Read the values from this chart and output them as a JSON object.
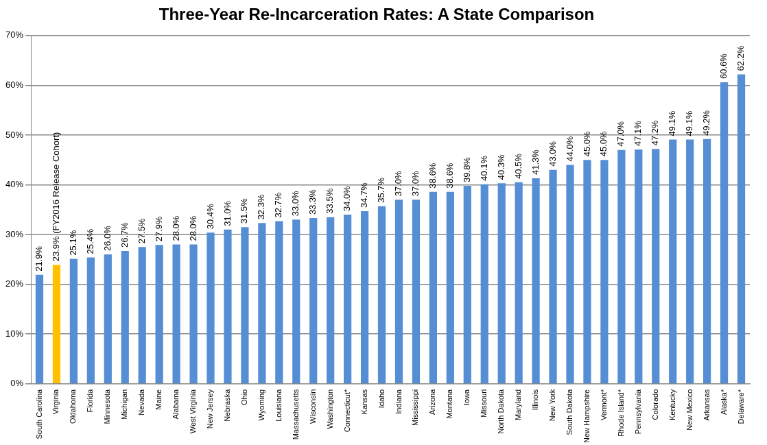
{
  "chart_data": {
    "type": "bar",
    "title": "Three-Year Re-Incarceration Rates: A State Comparison",
    "categories": [
      "South Carolina",
      "Virginia",
      "Oklahoma",
      "Florida",
      "Minnesota",
      "Michigan",
      "Nevada",
      "Maine",
      "Alabama",
      "West Virginia",
      "New Jersey",
      "Nebraska",
      "Ohio",
      "Wyoming",
      "Louisiana",
      "Massachusetts",
      "Wisconsin",
      "Washington",
      "Connecticut*",
      "Kansas",
      "Idaho",
      "Indiana",
      "Mississippi",
      "Arizona",
      "Montana",
      "Iowa",
      "Missouri",
      "North Dakota",
      "Maryland",
      "Illinois",
      "New York",
      "South Dakota",
      "New Hampshire",
      "Vermont*",
      "Rhode Island*",
      "Pennsylvania",
      "Colorado",
      "Kentucky",
      "New Mexico",
      "Arkansas",
      "Alaska*",
      "Delaware*"
    ],
    "values": [
      21.9,
      23.9,
      25.1,
      25.4,
      26.0,
      26.7,
      27.5,
      27.9,
      28.0,
      28.0,
      30.4,
      31.0,
      31.5,
      32.3,
      32.7,
      33.0,
      33.3,
      33.5,
      34.0,
      34.7,
      35.7,
      37.0,
      37.0,
      38.6,
      38.6,
      39.8,
      40.1,
      40.3,
      40.5,
      41.3,
      43.0,
      44.0,
      45.0,
      45.0,
      47.0,
      47.1,
      47.2,
      49.1,
      49.1,
      49.2,
      60.6,
      62.2
    ],
    "value_labels": [
      "21.9%",
      "23.9% (FY2016 Release Cohort)",
      "25.1%",
      "25.4%",
      "26.0%",
      "26.7%",
      "27.5%",
      "27.9%",
      "28.0%",
      "28.0%",
      "30.4%",
      "31.0%",
      "31.5%",
      "32.3%",
      "32.7%",
      "33.0%",
      "33.3%",
      "33.5%",
      "34.0%",
      "34.7%",
      "35.7%",
      "37.0%",
      "37.0%",
      "38.6%",
      "38.6%",
      "39.8%",
      "40.1%",
      "40.3%",
      "40.5%",
      "41.3%",
      "43.0%",
      "44.0%",
      "45.0%",
      "45.0%",
      "47.0%",
      "47.1%",
      "47.2%",
      "49.1%",
      "49.1%",
      "49.2%",
      "60.6%",
      "62.2%"
    ],
    "colors": [
      "#558ed5",
      "#ffc000",
      "#558ed5",
      "#558ed5",
      "#558ed5",
      "#558ed5",
      "#558ed5",
      "#558ed5",
      "#558ed5",
      "#558ed5",
      "#558ed5",
      "#558ed5",
      "#558ed5",
      "#558ed5",
      "#558ed5",
      "#558ed5",
      "#558ed5",
      "#558ed5",
      "#558ed5",
      "#558ed5",
      "#558ed5",
      "#558ed5",
      "#558ed5",
      "#558ed5",
      "#558ed5",
      "#558ed5",
      "#558ed5",
      "#558ed5",
      "#558ed5",
      "#558ed5",
      "#558ed5",
      "#558ed5",
      "#558ed5",
      "#558ed5",
      "#558ed5",
      "#558ed5",
      "#558ed5",
      "#558ed5",
      "#558ed5",
      "#558ed5",
      "#558ed5",
      "#558ed5"
    ],
    "ylim": [
      0,
      70
    ],
    "yticks": [
      {
        "value": 0,
        "label": "0%"
      },
      {
        "value": 10,
        "label": "10%"
      },
      {
        "value": 20,
        "label": "20%"
      },
      {
        "value": 30,
        "label": "30%"
      },
      {
        "value": 40,
        "label": "40%"
      },
      {
        "value": 50,
        "label": "50%"
      },
      {
        "value": 60,
        "label": "60%"
      },
      {
        "value": 70,
        "label": "70%"
      }
    ],
    "grid": "y",
    "legend": false
  }
}
